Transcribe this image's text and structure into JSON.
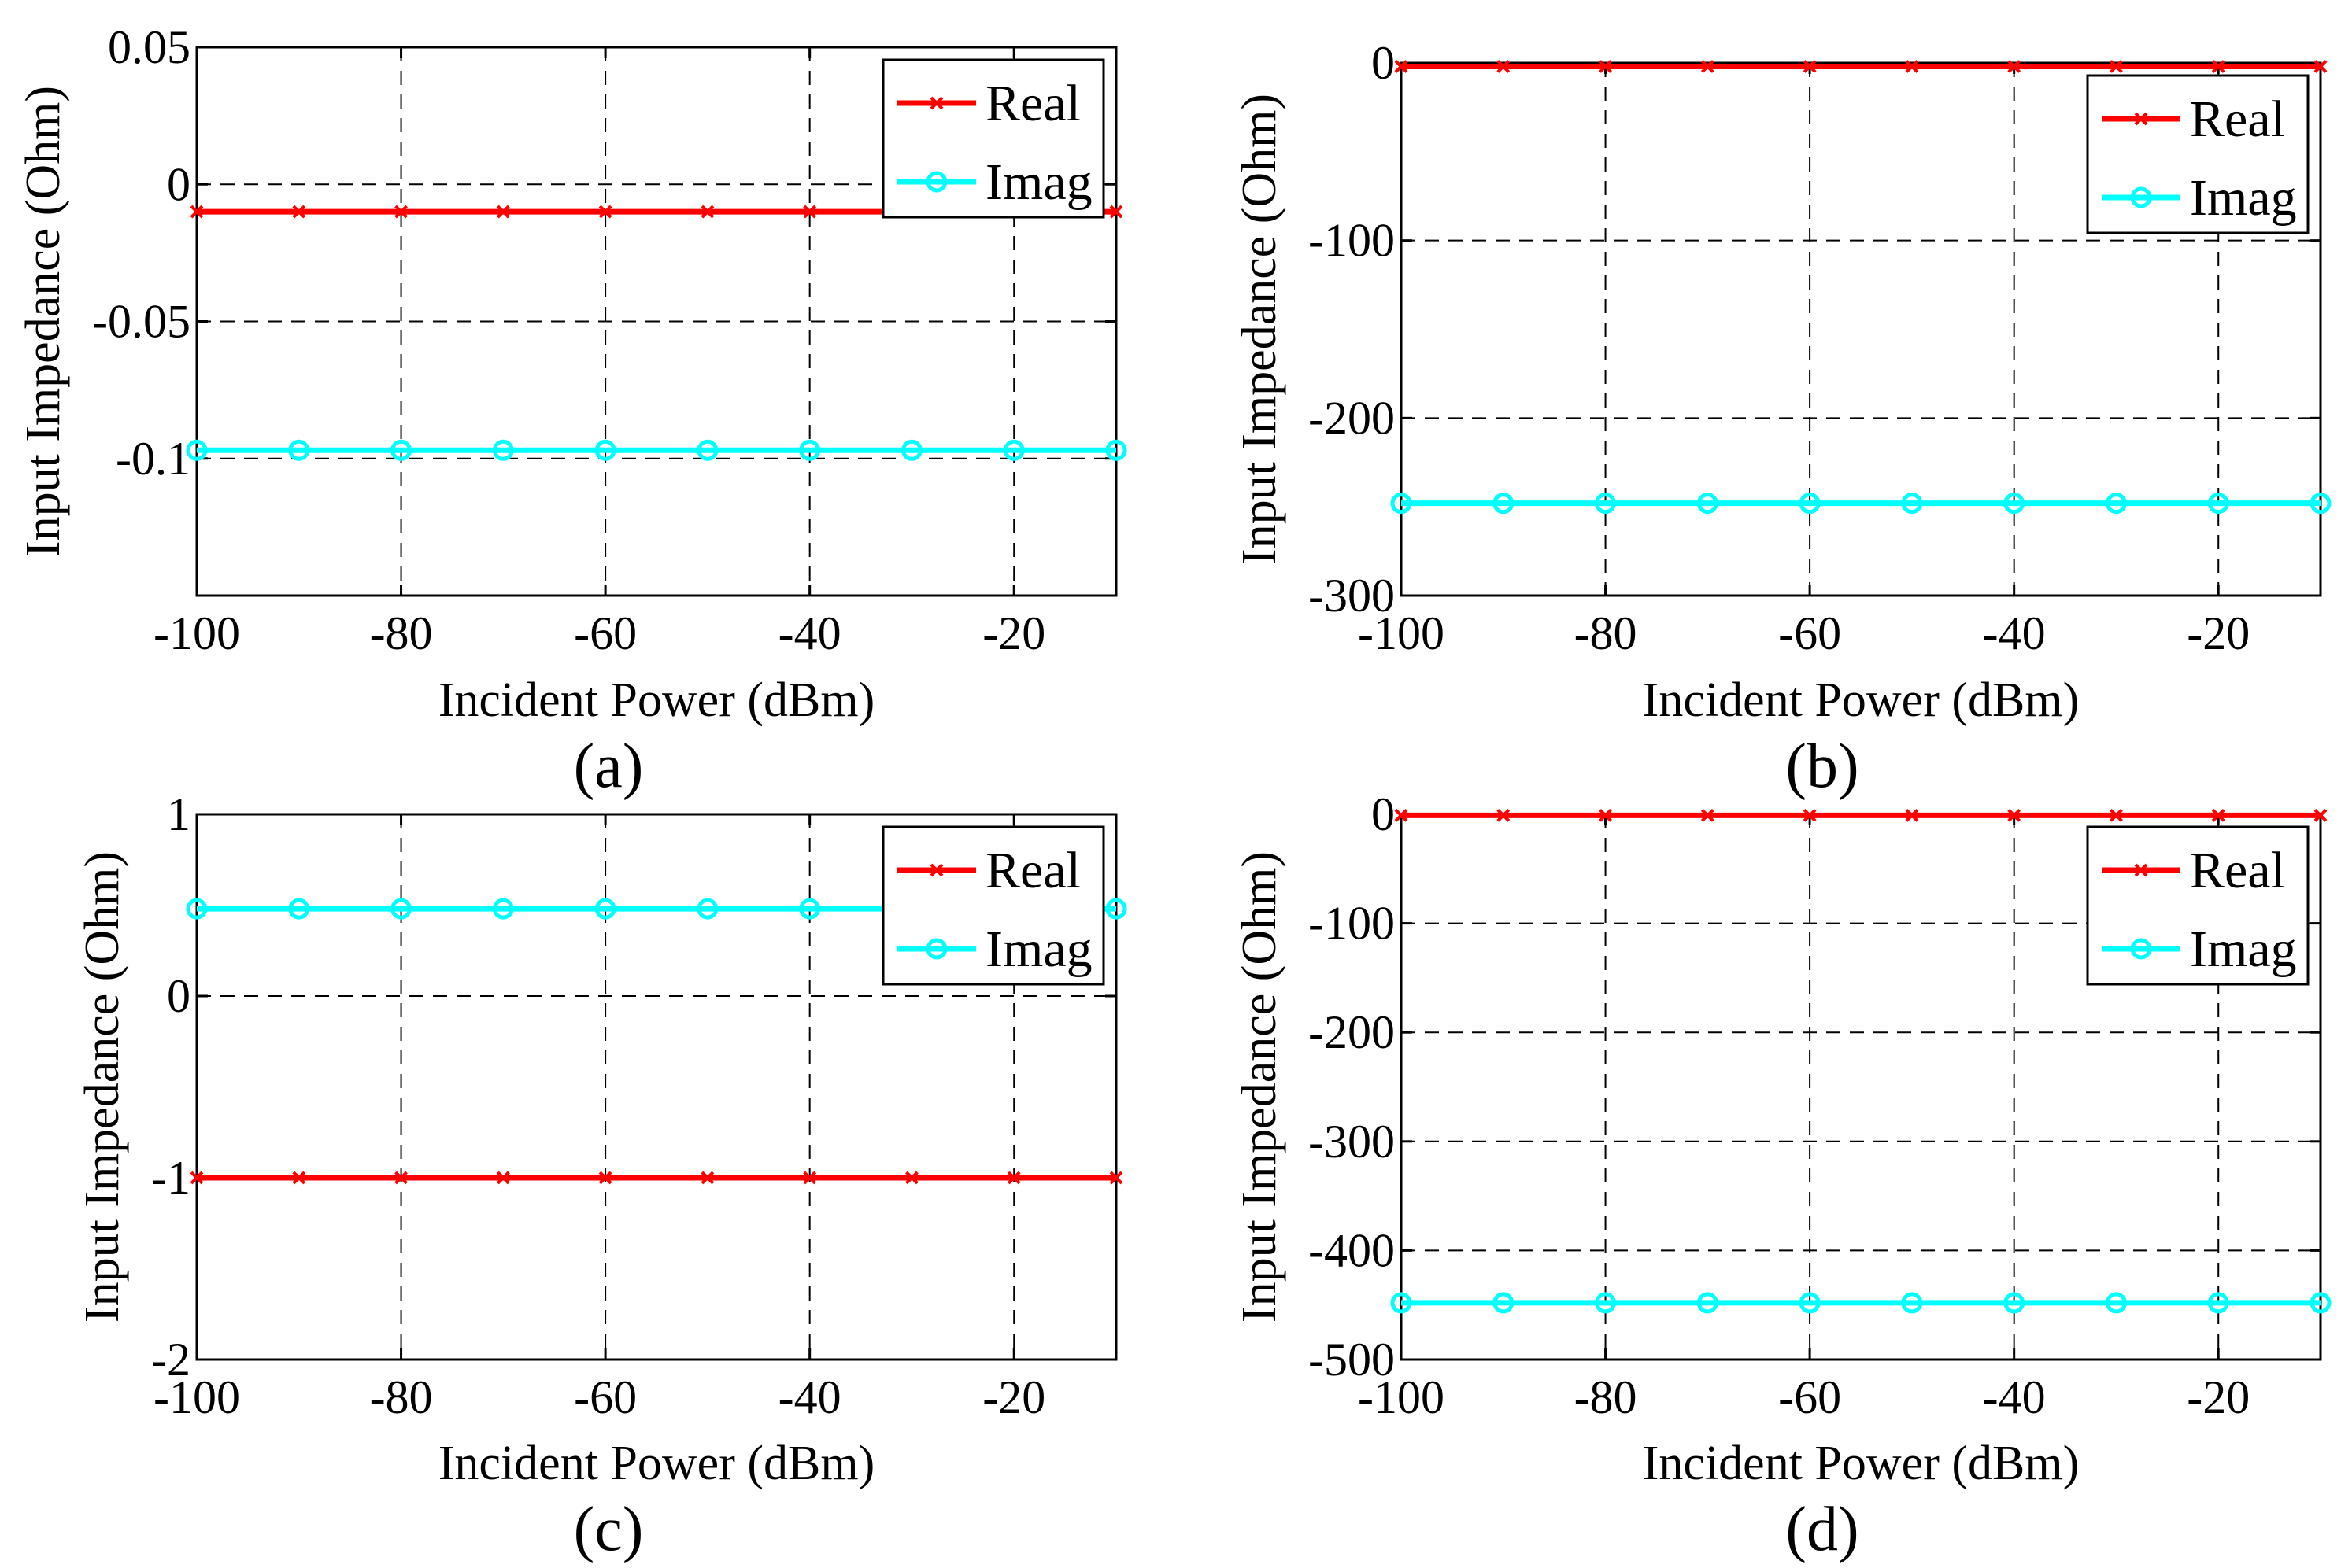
{
  "figure": {
    "legend_labels": [
      "Real",
      "Imag"
    ],
    "colors": {
      "real": "#ff0000",
      "imag": "#00ffff",
      "axis": "#000000",
      "grid": "#000000"
    }
  },
  "chart_data": [
    {
      "type": "line",
      "panel_label": "(a)",
      "xlabel": "Incident Power (dBm)",
      "ylabel": "Input Impedance (Ohm)",
      "xlim": [
        -100,
        -10
      ],
      "ylim": [
        -0.15,
        0.05
      ],
      "xticks": [
        -100,
        -80,
        -60,
        -40,
        -20
      ],
      "xtick_labels": [
        "-100",
        "-80",
        "-60",
        "-40",
        "-20"
      ],
      "yticks": [
        0.05,
        0,
        -0.05,
        -0.1
      ],
      "ytick_labels": [
        "0.05",
        "0",
        "-0.05",
        "-0.1"
      ],
      "x": [
        -100,
        -90,
        -80,
        -70,
        -60,
        -50,
        -40,
        -30,
        -20,
        -10
      ],
      "series": [
        {
          "name": "Real",
          "color": "#ff0000",
          "marker": "x",
          "values": [
            -0.01,
            -0.01,
            -0.01,
            -0.01,
            -0.01,
            -0.01,
            -0.01,
            -0.01,
            -0.01,
            -0.01
          ]
        },
        {
          "name": "Imag",
          "color": "#00ffff",
          "marker": "o",
          "values": [
            -0.097,
            -0.097,
            -0.097,
            -0.097,
            -0.097,
            -0.097,
            -0.097,
            -0.097,
            -0.097,
            -0.097
          ]
        }
      ],
      "legend": "top-right",
      "grid": true
    },
    {
      "type": "line",
      "panel_label": "(b)",
      "xlabel": "Incident Power (dBm)",
      "ylabel": "Input Impedance (Ohm)",
      "xlim": [
        -100,
        -10
      ],
      "ylim": [
        -300,
        0
      ],
      "xticks": [
        -100,
        -80,
        -60,
        -40,
        -20
      ],
      "xtick_labels": [
        "-100",
        "-80",
        "-60",
        "-40",
        "-20"
      ],
      "yticks": [
        0,
        -100,
        -200,
        -300
      ],
      "ytick_labels": [
        "0",
        "-100",
        "-200",
        "-300"
      ],
      "x": [
        -100,
        -90,
        -80,
        -70,
        -60,
        -50,
        -40,
        -30,
        -20,
        -10
      ],
      "series": [
        {
          "name": "Real",
          "color": "#ff0000",
          "marker": "x",
          "values": [
            -2,
            -2,
            -2,
            -2,
            -2,
            -2,
            -2,
            -2,
            -2,
            -2
          ]
        },
        {
          "name": "Imag",
          "color": "#00ffff",
          "marker": "o",
          "values": [
            -248,
            -248,
            -248,
            -248,
            -248,
            -248,
            -248,
            -248,
            -248,
            -248
          ]
        }
      ],
      "legend": "top-right",
      "grid": true
    },
    {
      "type": "line",
      "panel_label": "(c)",
      "xlabel": "Incident Power (dBm)",
      "ylabel": "Input Impedance (Ohm)",
      "xlim": [
        -100,
        -10
      ],
      "ylim": [
        -2,
        1
      ],
      "xticks": [
        -100,
        -80,
        -60,
        -40,
        -20
      ],
      "xtick_labels": [
        "-100",
        "-80",
        "-60",
        "-40",
        "-20"
      ],
      "yticks": [
        1,
        0,
        -1,
        -2
      ],
      "ytick_labels": [
        "1",
        "0",
        "-1",
        "-2"
      ],
      "x": [
        -100,
        -90,
        -80,
        -70,
        -60,
        -50,
        -40,
        -30,
        -20,
        -10
      ],
      "series": [
        {
          "name": "Real",
          "color": "#ff0000",
          "marker": "x",
          "values": [
            -1.0,
            -1.0,
            -1.0,
            -1.0,
            -1.0,
            -1.0,
            -1.0,
            -1.0,
            -1.0,
            -1.0
          ]
        },
        {
          "name": "Imag",
          "color": "#00ffff",
          "marker": "o",
          "values": [
            0.48,
            0.48,
            0.48,
            0.48,
            0.48,
            0.48,
            0.48,
            0.48,
            0.48,
            0.48
          ]
        }
      ],
      "legend": "top-right",
      "grid": true
    },
    {
      "type": "line",
      "panel_label": "(d)",
      "xlabel": "Incident Power (dBm)",
      "ylabel": "Input Impedance (Ohm)",
      "xlim": [
        -100,
        -10
      ],
      "ylim": [
        -500,
        0
      ],
      "xticks": [
        -100,
        -80,
        -60,
        -40,
        -20
      ],
      "xtick_labels": [
        "-100",
        "-80",
        "-60",
        "-40",
        "-20"
      ],
      "yticks": [
        0,
        -100,
        -200,
        -300,
        -400,
        -500
      ],
      "ytick_labels": [
        "0",
        "-100",
        "-200",
        "-300",
        "-400",
        "-500"
      ],
      "x": [
        -100,
        -90,
        -80,
        -70,
        -60,
        -50,
        -40,
        -30,
        -20,
        -10
      ],
      "series": [
        {
          "name": "Real",
          "color": "#ff0000",
          "marker": "x",
          "values": [
            -1,
            -1,
            -1,
            -1,
            -1,
            -1,
            -1,
            -1,
            -1,
            -1
          ]
        },
        {
          "name": "Imag",
          "color": "#00ffff",
          "marker": "o",
          "values": [
            -448,
            -448,
            -448,
            -448,
            -448,
            -448,
            -448,
            -448,
            -448,
            -448
          ]
        }
      ],
      "legend": "top-right",
      "grid": true
    }
  ]
}
